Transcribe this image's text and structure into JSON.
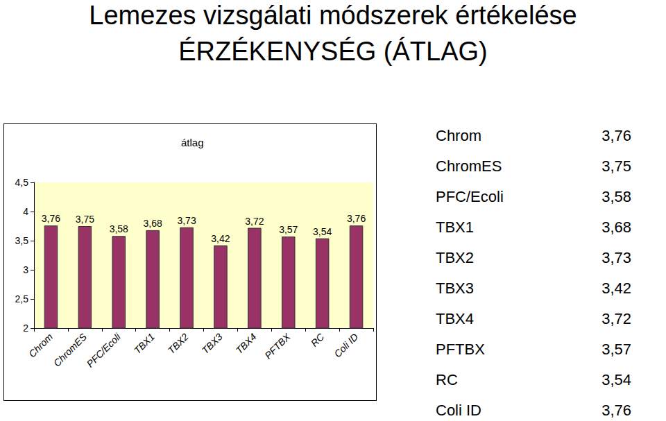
{
  "header": {
    "title": "Lemezes vizsgálati módszerek értékelése",
    "subtitle": "ÉRZÉKENYSÉG (ÁTLAG)"
  },
  "chart_data": {
    "type": "bar",
    "title": "átlag",
    "categories": [
      "Chrom",
      "ChromES",
      "PFC/Ecoli",
      "TBX1",
      "TBX2",
      "TBX3",
      "TBX4",
      "PFTBX",
      "RC",
      "Coli ID"
    ],
    "values": [
      3.76,
      3.75,
      3.58,
      3.68,
      3.73,
      3.42,
      3.72,
      3.57,
      3.54,
      3.76
    ],
    "value_labels": [
      "3,76",
      "3,75",
      "3,58",
      "3,68",
      "3,73",
      "3,42",
      "3,72",
      "3,57",
      "3,54",
      "3,76"
    ],
    "color": "#993366",
    "ylim": [
      2,
      4.5
    ],
    "yticks": [
      2,
      {
        "value": 2.5,
        "label": "2,5"
      },
      3,
      {
        "value": 3.5,
        "label": "3,5"
      },
      4,
      {
        "value": 4.5,
        "label": "4,5"
      }
    ],
    "grid": false,
    "data_labels": true
  }
}
